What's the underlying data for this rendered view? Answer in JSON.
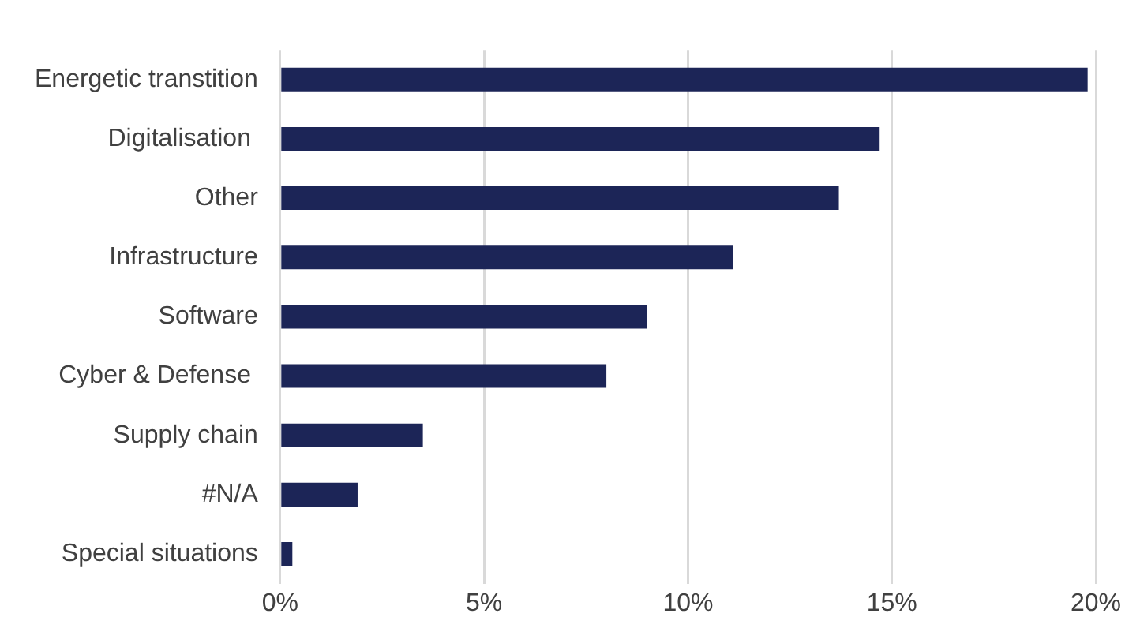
{
  "chart_data": {
    "type": "bar",
    "orientation": "horizontal",
    "categories": [
      "Energetic transtition",
      "Digitalisation ",
      "Other",
      "Infrastructure",
      "Software",
      "Cyber & Defense ",
      "Supply chain",
      "#N/A",
      "Special situations"
    ],
    "values": [
      19.8,
      14.7,
      13.7,
      11.1,
      9.0,
      8.0,
      3.5,
      1.9,
      0.3
    ],
    "color": "#1c2557",
    "xlim": [
      0,
      20
    ],
    "xticks": [
      {
        "value": 0,
        "label": "0%"
      },
      {
        "value": 5,
        "label": "5%"
      },
      {
        "value": 10,
        "label": "10%"
      },
      {
        "value": 15,
        "label": "15%"
      },
      {
        "value": 20,
        "label": "20%"
      }
    ],
    "grid": "x"
  }
}
